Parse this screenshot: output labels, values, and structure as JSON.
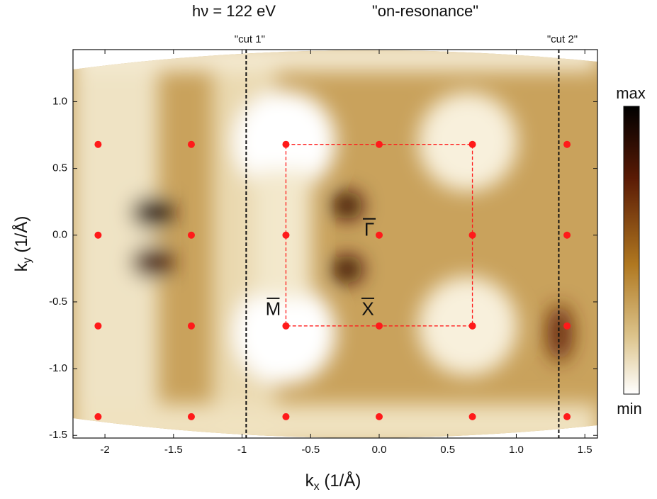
{
  "chart_data": {
    "type": "scatter",
    "title": "hν = 122 eV",
    "subtitle": "\"on-resonance\"",
    "xlabel": [
      "k",
      "x",
      " (1/Å)"
    ],
    "ylabel": [
      "k",
      "y",
      " (1/Å)"
    ],
    "xlim": [
      -2.233,
      1.592
    ],
    "ylim": [
      -1.52,
      1.39
    ],
    "xticks": [
      -2.0,
      -1.5,
      -1.0,
      -0.5,
      {
        "value": 0,
        "label": "0.0"
      },
      0.5,
      {
        "value": 1,
        "label": "1.0"
      },
      1.5
    ],
    "yticks": [
      -1.5,
      {
        "value": -1,
        "label": "-1.0"
      },
      -0.5,
      {
        "value": 0,
        "label": "0.0"
      },
      0.5,
      {
        "value": 1,
        "label": "1.0"
      }
    ],
    "series": [
      {
        "color": "#ff1a1a",
        "x": [
          -2.05,
          -1.37,
          -0.68,
          0,
          0.68,
          1.37,
          -2.05,
          -1.37,
          -0.68,
          0,
          0.68,
          1.37,
          -2.05,
          -1.37,
          -0.68,
          0,
          0.68,
          1.37,
          -2.05,
          -1.37,
          -0.68,
          0,
          0.68,
          1.37
        ],
        "y": [
          0.68,
          0.68,
          0.68,
          0.68,
          0.68,
          0.68,
          0,
          0,
          0,
          0,
          0,
          0,
          -0.68,
          -0.68,
          -0.68,
          -0.68,
          -0.68,
          -0.68,
          -1.36,
          -1.36,
          -1.36,
          -1.36,
          -1.36,
          -1.36
        ]
      }
    ],
    "zone": {
      "color": "#ff1a1a",
      "x": [
        -0.68,
        0.68
      ],
      "y": [
        -0.68,
        0.68
      ]
    },
    "cuts": [
      {
        "label": "\"cut 1\"",
        "x": -0.97
      },
      {
        "label": "\"cut 2\"",
        "x": 1.31
      }
    ],
    "points_labels": [
      {
        "label": "Γ",
        "x": 0,
        "y": 0
      },
      {
        "label": "M",
        "x": -0.68,
        "y": -0.68
      },
      {
        "label": "X",
        "x": 0,
        "y": -0.68
      }
    ],
    "colorbar": {
      "max": "max",
      "min": "min"
    }
  }
}
